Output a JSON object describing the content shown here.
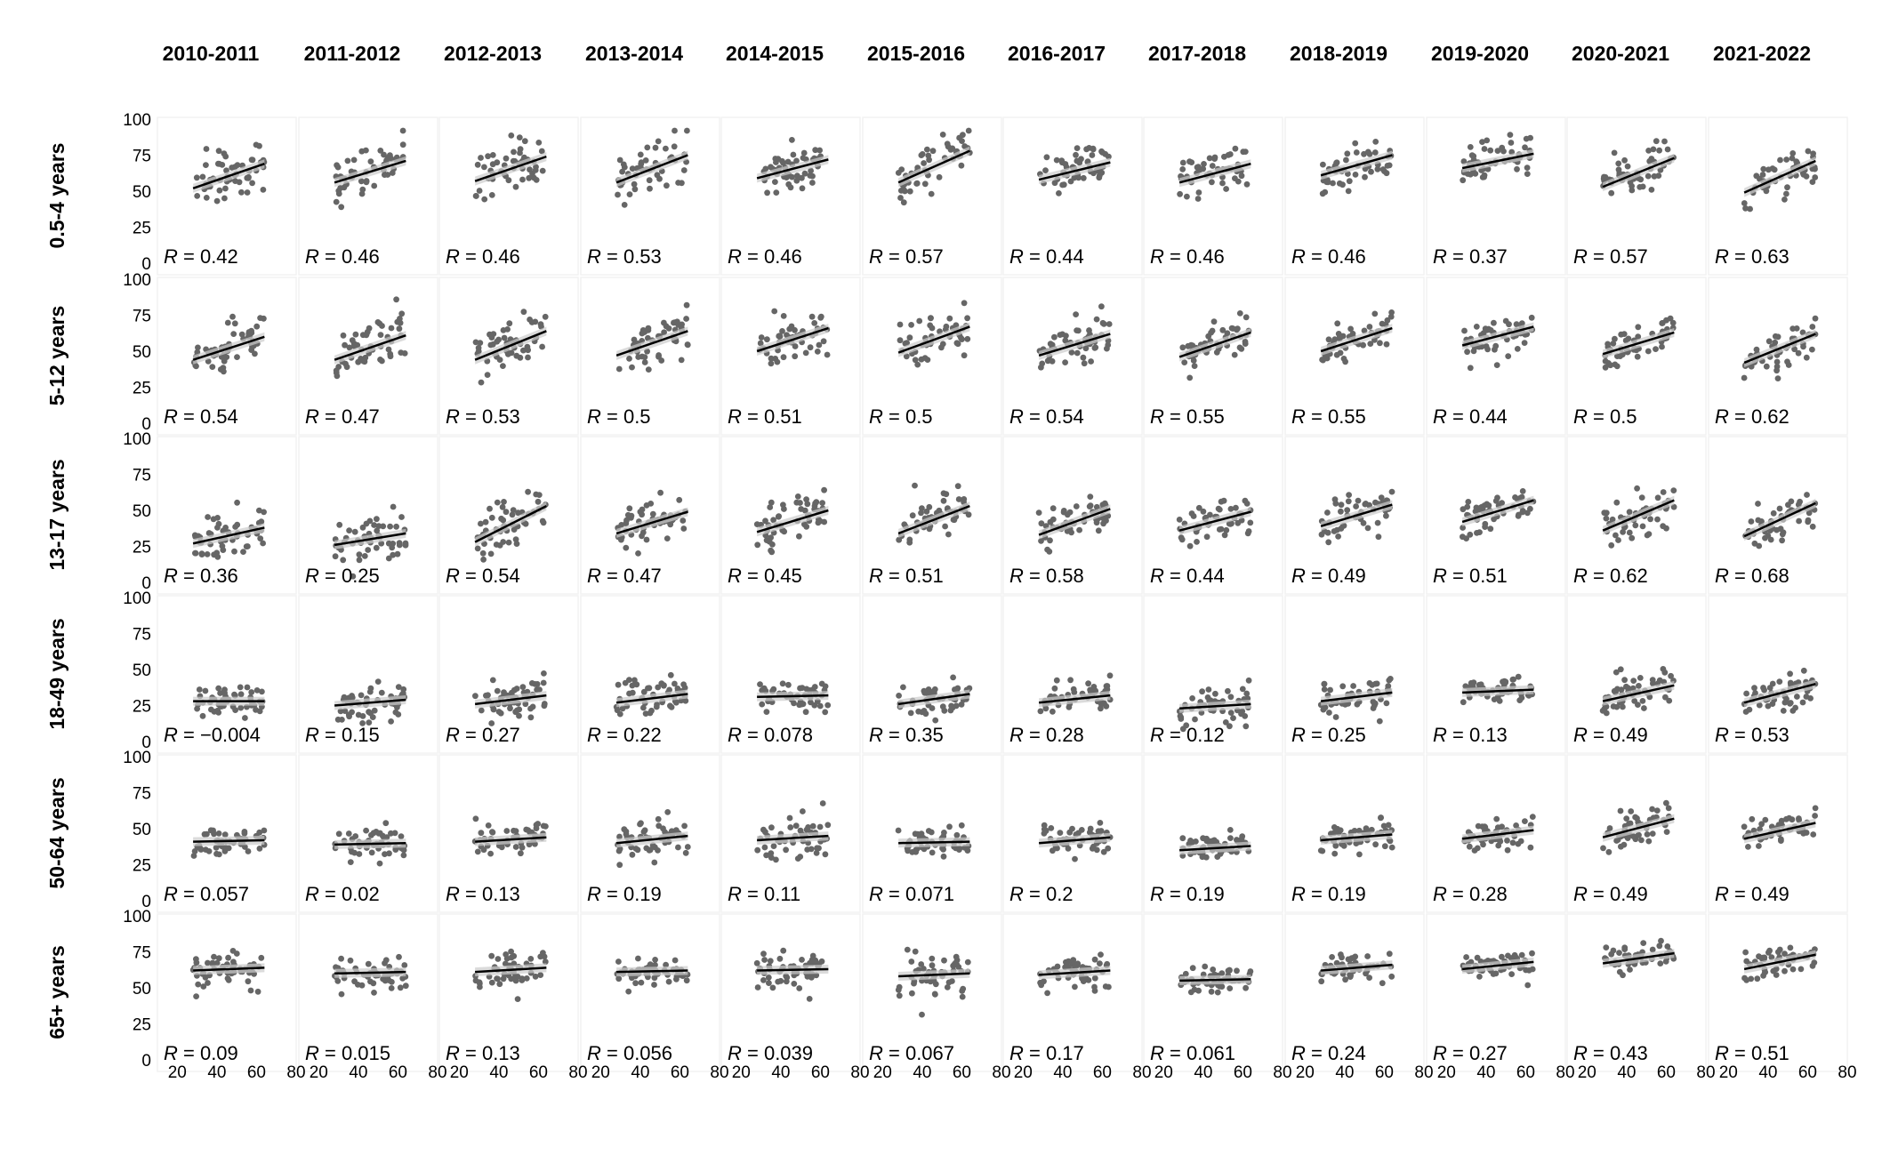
{
  "chart_data": {
    "type": "scatter",
    "layout": "facet-grid",
    "columns": [
      "2010-2011",
      "2011-2012",
      "2012-2013",
      "2013-2014",
      "2014-2015",
      "2015-2016",
      "2016-2017",
      "2017-2018",
      "2018-2019",
      "2019-2020",
      "2020-2021",
      "2021-2022"
    ],
    "rows": [
      "0.5-4 years",
      "5-12 years",
      "13-17 years",
      "18-49 years",
      "50-64 years",
      "65+ years"
    ],
    "x_ticks": [
      20,
      40,
      60,
      80
    ],
    "y_ticks": [
      0,
      25,
      50,
      75,
      100
    ],
    "xlim": [
      10,
      80
    ],
    "ylim": [
      0,
      100
    ],
    "grid": true,
    "point_color": "#666666",
    "line_color": "#000000",
    "band_color": "#cccccc",
    "r_prefix": "R",
    "panels": [
      [
        {
          "r": "0.42",
          "x_range": [
            28,
            64
          ],
          "fit": [
            52,
            69
          ]
        },
        {
          "r": "0.46",
          "x_range": [
            28,
            64
          ],
          "fit": [
            56,
            71
          ]
        },
        {
          "r": "0.46",
          "x_range": [
            28,
            64
          ],
          "fit": [
            57,
            74
          ]
        },
        {
          "r": "0.53",
          "x_range": [
            28,
            64
          ],
          "fit": [
            56,
            75
          ]
        },
        {
          "r": "0.46",
          "x_range": [
            28,
            64
          ],
          "fit": [
            59,
            72
          ]
        },
        {
          "r": "0.57",
          "x_range": [
            28,
            64
          ],
          "fit": [
            56,
            78
          ]
        },
        {
          "r": "0.44",
          "x_range": [
            28,
            64
          ],
          "fit": [
            58,
            70
          ]
        },
        {
          "r": "0.46",
          "x_range": [
            28,
            64
          ],
          "fit": [
            56,
            69
          ]
        },
        {
          "r": "0.46",
          "x_range": [
            28,
            64
          ],
          "fit": [
            61,
            75
          ]
        },
        {
          "r": "0.37",
          "x_range": [
            28,
            64
          ],
          "fit": [
            66,
            76
          ]
        },
        {
          "r": "0.57",
          "x_range": [
            28,
            64
          ],
          "fit": [
            53,
            73
          ]
        },
        {
          "r": "0.63",
          "x_range": [
            28,
            64
          ],
          "fit": [
            49,
            71
          ]
        }
      ],
      [
        {
          "r": "0.54",
          "x_range": [
            28,
            64
          ],
          "fit": [
            44,
            60
          ]
        },
        {
          "r": "0.47",
          "x_range": [
            28,
            64
          ],
          "fit": [
            44,
            61
          ]
        },
        {
          "r": "0.53",
          "x_range": [
            28,
            64
          ],
          "fit": [
            44,
            64
          ]
        },
        {
          "r": "0.5",
          "x_range": [
            28,
            64
          ],
          "fit": [
            47,
            64
          ]
        },
        {
          "r": "0.51",
          "x_range": [
            28,
            64
          ],
          "fit": [
            50,
            66
          ]
        },
        {
          "r": "0.5",
          "x_range": [
            28,
            64
          ],
          "fit": [
            49,
            67
          ]
        },
        {
          "r": "0.54",
          "x_range": [
            28,
            64
          ],
          "fit": [
            47,
            62
          ]
        },
        {
          "r": "0.55",
          "x_range": [
            28,
            64
          ],
          "fit": [
            46,
            63
          ]
        },
        {
          "r": "0.55",
          "x_range": [
            28,
            64
          ],
          "fit": [
            50,
            66
          ]
        },
        {
          "r": "0.44",
          "x_range": [
            28,
            64
          ],
          "fit": [
            54,
            67
          ]
        },
        {
          "r": "0.5",
          "x_range": [
            28,
            64
          ],
          "fit": [
            48,
            63
          ]
        },
        {
          "r": "0.62",
          "x_range": [
            28,
            64
          ],
          "fit": [
            42,
            62
          ]
        }
      ],
      [
        {
          "r": "0.36",
          "x_range": [
            28,
            64
          ],
          "fit": [
            27,
            38
          ]
        },
        {
          "r": "0.25",
          "x_range": [
            28,
            64
          ],
          "fit": [
            26,
            34
          ]
        },
        {
          "r": "0.54",
          "x_range": [
            28,
            64
          ],
          "fit": [
            28,
            53
          ]
        },
        {
          "r": "0.47",
          "x_range": [
            28,
            64
          ],
          "fit": [
            34,
            49
          ]
        },
        {
          "r": "0.45",
          "x_range": [
            28,
            64
          ],
          "fit": [
            35,
            50
          ]
        },
        {
          "r": "0.51",
          "x_range": [
            28,
            64
          ],
          "fit": [
            34,
            53
          ]
        },
        {
          "r": "0.58",
          "x_range": [
            28,
            64
          ],
          "fit": [
            33,
            51
          ]
        },
        {
          "r": "0.44",
          "x_range": [
            28,
            64
          ],
          "fit": [
            36,
            49
          ]
        },
        {
          "r": "0.49",
          "x_range": [
            28,
            64
          ],
          "fit": [
            39,
            54
          ]
        },
        {
          "r": "0.51",
          "x_range": [
            28,
            64
          ],
          "fit": [
            42,
            57
          ]
        },
        {
          "r": "0.62",
          "x_range": [
            28,
            64
          ],
          "fit": [
            36,
            57
          ]
        },
        {
          "r": "0.68",
          "x_range": [
            28,
            64
          ],
          "fit": [
            32,
            55
          ]
        }
      ],
      [
        {
          "r": "−0.004",
          "x_range": [
            28,
            64
          ],
          "fit": [
            28,
            28
          ]
        },
        {
          "r": "0.15",
          "x_range": [
            28,
            64
          ],
          "fit": [
            25,
            29
          ]
        },
        {
          "r": "0.27",
          "x_range": [
            28,
            64
          ],
          "fit": [
            26,
            32
          ]
        },
        {
          "r": "0.22",
          "x_range": [
            28,
            64
          ],
          "fit": [
            27,
            33
          ]
        },
        {
          "r": "0.078",
          "x_range": [
            28,
            64
          ],
          "fit": [
            31,
            32
          ]
        },
        {
          "r": "0.35",
          "x_range": [
            28,
            64
          ],
          "fit": [
            26,
            33
          ]
        },
        {
          "r": "0.28",
          "x_range": [
            28,
            64
          ],
          "fit": [
            27,
            32
          ]
        },
        {
          "r": "0.12",
          "x_range": [
            28,
            64
          ],
          "fit": [
            23,
            26
          ]
        },
        {
          "r": "0.25",
          "x_range": [
            28,
            64
          ],
          "fit": [
            28,
            34
          ]
        },
        {
          "r": "0.13",
          "x_range": [
            28,
            64
          ],
          "fit": [
            34,
            36
          ]
        },
        {
          "r": "0.49",
          "x_range": [
            28,
            64
          ],
          "fit": [
            28,
            39
          ]
        },
        {
          "r": "0.53",
          "x_range": [
            28,
            64
          ],
          "fit": [
            27,
            40
          ]
        }
      ],
      [
        {
          "r": "0.057",
          "x_range": [
            28,
            64
          ],
          "fit": [
            41,
            42
          ]
        },
        {
          "r": "0.02",
          "x_range": [
            28,
            64
          ],
          "fit": [
            39,
            40
          ]
        },
        {
          "r": "0.13",
          "x_range": [
            28,
            64
          ],
          "fit": [
            41,
            44
          ]
        },
        {
          "r": "0.19",
          "x_range": [
            28,
            64
          ],
          "fit": [
            40,
            45
          ]
        },
        {
          "r": "0.11",
          "x_range": [
            28,
            64
          ],
          "fit": [
            42,
            45
          ]
        },
        {
          "r": "0.071",
          "x_range": [
            28,
            64
          ],
          "fit": [
            40,
            41
          ]
        },
        {
          "r": "0.2",
          "x_range": [
            28,
            64
          ],
          "fit": [
            40,
            44
          ]
        },
        {
          "r": "0.19",
          "x_range": [
            28,
            64
          ],
          "fit": [
            35,
            38
          ]
        },
        {
          "r": "0.19",
          "x_range": [
            28,
            64
          ],
          "fit": [
            42,
            46
          ]
        },
        {
          "r": "0.28",
          "x_range": [
            28,
            64
          ],
          "fit": [
            43,
            49
          ]
        },
        {
          "r": "0.49",
          "x_range": [
            28,
            64
          ],
          "fit": [
            44,
            57
          ]
        },
        {
          "r": "0.49",
          "x_range": [
            28,
            64
          ],
          "fit": [
            43,
            54
          ]
        }
      ],
      [
        {
          "r": "0.09",
          "x_range": [
            28,
            64
          ],
          "fit": [
            62,
            64
          ]
        },
        {
          "r": "0.015",
          "x_range": [
            28,
            64
          ],
          "fit": [
            60,
            61
          ]
        },
        {
          "r": "0.13",
          "x_range": [
            28,
            64
          ],
          "fit": [
            61,
            64
          ]
        },
        {
          "r": "0.056",
          "x_range": [
            28,
            64
          ],
          "fit": [
            61,
            62
          ]
        },
        {
          "r": "0.039",
          "x_range": [
            28,
            64
          ],
          "fit": [
            62,
            63
          ]
        },
        {
          "r": "0.067",
          "x_range": [
            28,
            64
          ],
          "fit": [
            58,
            60
          ]
        },
        {
          "r": "0.17",
          "x_range": [
            28,
            64
          ],
          "fit": [
            59,
            62
          ]
        },
        {
          "r": "0.061",
          "x_range": [
            28,
            64
          ],
          "fit": [
            55,
            56
          ]
        },
        {
          "r": "0.24",
          "x_range": [
            28,
            64
          ],
          "fit": [
            62,
            66
          ]
        },
        {
          "r": "0.27",
          "x_range": [
            28,
            64
          ],
          "fit": [
            63,
            68
          ]
        },
        {
          "r": "0.43",
          "x_range": [
            28,
            64
          ],
          "fit": [
            67,
            74
          ]
        },
        {
          "r": "0.51",
          "x_range": [
            28,
            64
          ],
          "fit": [
            63,
            73
          ]
        }
      ]
    ]
  }
}
